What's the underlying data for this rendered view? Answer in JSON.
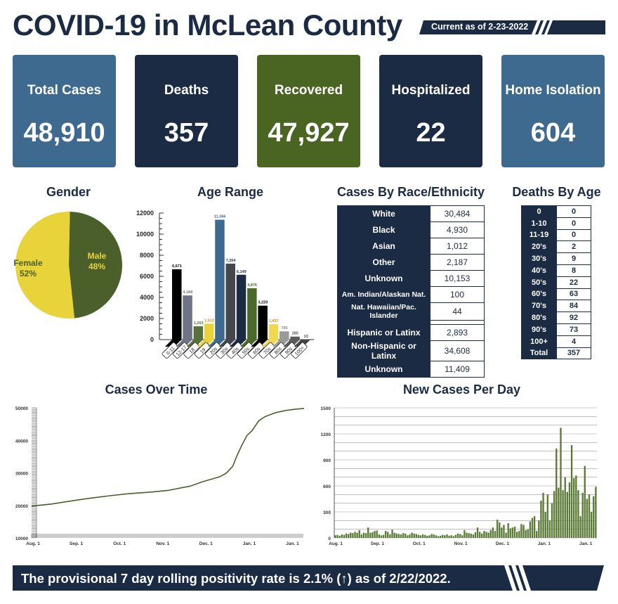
{
  "header": {
    "title": "COVID-19 in McLean County",
    "current_as_of": "Current as of 2-23-2022"
  },
  "cards": [
    {
      "label": "Total Cases",
      "value": "48,910",
      "color": "#3e6a8f"
    },
    {
      "label": "Deaths",
      "value": "357",
      "color": "#1c2b44"
    },
    {
      "label": "Recovered",
      "value": "47,927",
      "color": "#4a6422"
    },
    {
      "label": "Hospitalized",
      "value": "22",
      "color": "#1c2b44"
    },
    {
      "label": "Home Isolation",
      "value": "604",
      "color": "#3e6a8f"
    }
  ],
  "gender": {
    "title": "Gender",
    "slices": [
      {
        "label": "Male",
        "pct_label": "48%",
        "value": 48,
        "color": "#4b5f2a"
      },
      {
        "label": "Female",
        "pct_label": "52%",
        "value": 52,
        "color": "#e8d43a"
      }
    ]
  },
  "race": {
    "title": "Cases By Race/Ethnicity",
    "rows": [
      {
        "label": "White",
        "value": "30,484"
      },
      {
        "label": "Black",
        "value": "4,930"
      },
      {
        "label": "Asian",
        "value": "1,012"
      },
      {
        "label": "Other",
        "value": "2,187"
      },
      {
        "label": "Unknown",
        "value": "10,153"
      },
      {
        "label": "Am. Indian/Alaskan Nat.",
        "value": "100"
      },
      {
        "label": "Nat. Hawaiian/Pac. Islander",
        "value": "44"
      }
    ],
    "ethnicity_rows": [
      {
        "label": "Hispanic or Latinx",
        "value": "2,893"
      },
      {
        "label": "Non-Hispanic or Latinx",
        "value": "34,608"
      },
      {
        "label": "Unknown",
        "value": "11,409"
      }
    ]
  },
  "deaths_by_age": {
    "title": "Deaths By Age",
    "rows": [
      [
        "0",
        "0"
      ],
      [
        "1-10",
        "0"
      ],
      [
        "11-19",
        "0"
      ],
      [
        "20's",
        "2"
      ],
      [
        "30's",
        "9"
      ],
      [
        "40's",
        "8"
      ],
      [
        "50's",
        "22"
      ],
      [
        "60's",
        "63"
      ],
      [
        "70's",
        "84"
      ],
      [
        "80's",
        "92"
      ],
      [
        "90's",
        "73"
      ],
      [
        "100+",
        "4"
      ],
      [
        "Total",
        "357"
      ]
    ]
  },
  "chart_data": [
    {
      "type": "bar",
      "title": "Age Range",
      "categories": [
        "0-11",
        "12-17",
        "18",
        "19",
        "20s",
        "30s",
        "40s",
        "50s",
        "60s",
        "70s",
        "80s",
        "90s",
        "100+"
      ],
      "values": [
        6671,
        4188,
        1263,
        1513,
        11366,
        7204,
        6149,
        4876,
        3220,
        1457,
        785,
        285,
        13
      ],
      "labels": [
        "6,671",
        "4,188",
        "1,263",
        "1,513",
        "11,366",
        "7,204",
        "6,149",
        "4,876",
        "3,220",
        "1,457",
        "785",
        "285",
        "13"
      ],
      "colors": [
        "#000000",
        "#6f7384",
        "#56713a",
        "#e8d43a",
        "#3e6a8f",
        "#45474c",
        "#1c2b44",
        "#4b6a2a",
        "#000000",
        "#f0d850",
        "#9a9a9a",
        "#5a5a5a",
        "#444444"
      ],
      "label_colors": [
        "#000",
        "#777",
        "#56713a",
        "#d08a20",
        "#3e6a8f",
        "#333",
        "#1c2b44",
        "#4b6a2a",
        "#000",
        "#d08a20",
        "#888",
        "#555",
        "#444"
      ],
      "yticks": [
        0,
        2000,
        4000,
        6000,
        8000,
        10000,
        12000
      ],
      "ylim": [
        0,
        12000
      ]
    },
    {
      "type": "line",
      "title": "Cases Over Time",
      "xticks": [
        "Aug. 1",
        "Sep. 1",
        "Oct. 1",
        "Nov. 1",
        "Dec. 1",
        "Jan. 1",
        "Jan. 1"
      ],
      "yticks": [
        10000,
        20000,
        30000,
        40000,
        50000
      ],
      "ylim": [
        10000,
        50000
      ],
      "color": "#4b5f2a",
      "points": [
        [
          0,
          19800
        ],
        [
          15,
          20400
        ],
        [
          31,
          21400
        ],
        [
          45,
          22200
        ],
        [
          61,
          23000
        ],
        [
          75,
          23600
        ],
        [
          92,
          24100
        ],
        [
          105,
          24600
        ],
        [
          122,
          25900
        ],
        [
          132,
          27300
        ],
        [
          145,
          28800
        ],
        [
          150,
          29900
        ],
        [
          155,
          32000
        ],
        [
          158,
          35000
        ],
        [
          162,
          38500
        ],
        [
          166,
          41500
        ],
        [
          170,
          43000
        ],
        [
          175,
          46000
        ],
        [
          180,
          47300
        ],
        [
          188,
          48500
        ],
        [
          196,
          49200
        ],
        [
          204,
          49600
        ],
        [
          210,
          49800
        ]
      ]
    },
    {
      "type": "bar",
      "title": "New Cases Per Day",
      "xticks": [
        "Aug. 1",
        "Sep. 1",
        "Oct. 1",
        "Nov. 1",
        "Dec. 1",
        "Jan. 1",
        "Jan. 1"
      ],
      "yticks": [
        0,
        300,
        600,
        900,
        1200,
        1500
      ],
      "ylim": [
        0,
        1500
      ],
      "color": "#5a7a35",
      "values": [
        30,
        35,
        25,
        40,
        35,
        50,
        45,
        60,
        55,
        70,
        60,
        90,
        40,
        60,
        55,
        120,
        60,
        65,
        80,
        85,
        40,
        30,
        35,
        80,
        70,
        40,
        95,
        60,
        50,
        45,
        40,
        55,
        50,
        30,
        40,
        60,
        50,
        45,
        35,
        30,
        40,
        35,
        25,
        30,
        45,
        40,
        30,
        20,
        25,
        35,
        30,
        40,
        25,
        30,
        20,
        35,
        50,
        45,
        30,
        90,
        60,
        55,
        50,
        40,
        65,
        120,
        70,
        50,
        80,
        70,
        60,
        90,
        120,
        80,
        210,
        180,
        120,
        150,
        60,
        170,
        110,
        120,
        130,
        70,
        80,
        160,
        150,
        90,
        100,
        190,
        230,
        250,
        80,
        200,
        430,
        520,
        300,
        500,
        200,
        400,
        540,
        1030,
        580,
        1270,
        550,
        700,
        530,
        640,
        1070,
        690,
        720,
        550,
        250,
        520,
        830,
        450,
        500,
        300,
        480,
        590
      ]
    }
  ],
  "titles": {
    "age": "Age Range",
    "cases_over_time": "Cases Over Time",
    "new_cases": "New Cases Per Day"
  },
  "footer": {
    "text": "The provisional 7 day rolling positivity rate is 2.1% (↑) as of 2/22/2022."
  }
}
